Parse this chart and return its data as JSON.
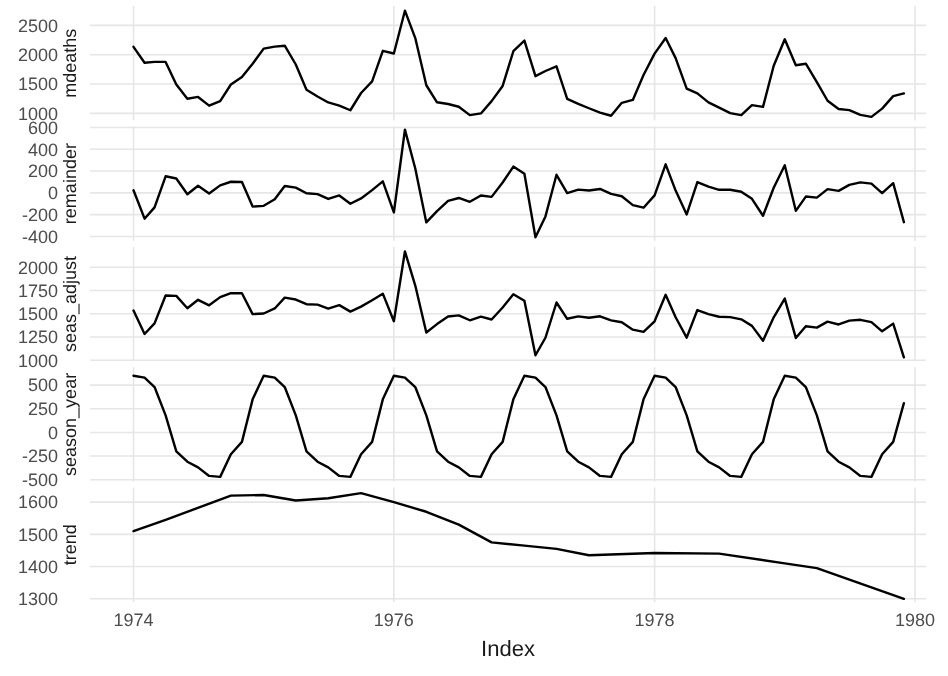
{
  "chart_data": [
    {
      "type": "line",
      "ylabel": "mdeaths",
      "x": [
        "1974-01",
        "1974-02",
        "1974-03",
        "1974-04",
        "1974-05",
        "1974-06",
        "1974-07",
        "1974-08",
        "1974-09",
        "1974-10",
        "1974-11",
        "1974-12",
        "1975-01",
        "1975-02",
        "1975-03",
        "1975-04",
        "1975-05",
        "1975-06",
        "1975-07",
        "1975-08",
        "1975-09",
        "1975-10",
        "1975-11",
        "1975-12",
        "1976-01",
        "1976-02",
        "1976-03",
        "1976-04",
        "1976-05",
        "1976-06",
        "1976-07",
        "1976-08",
        "1976-09",
        "1976-10",
        "1976-11",
        "1976-12",
        "1977-01",
        "1977-02",
        "1977-03",
        "1977-04",
        "1977-05",
        "1977-06",
        "1977-07",
        "1977-08",
        "1977-09",
        "1977-10",
        "1977-11",
        "1977-12",
        "1978-01",
        "1978-02",
        "1978-03",
        "1978-04",
        "1978-05",
        "1978-06",
        "1978-07",
        "1978-08",
        "1978-09",
        "1978-10",
        "1978-11",
        "1978-12",
        "1979-01",
        "1979-02",
        "1979-03",
        "1979-04",
        "1979-05",
        "1979-06",
        "1979-07",
        "1979-08",
        "1979-09",
        "1979-10",
        "1979-11",
        "1979-12"
      ],
      "series": [
        {
          "color": "#000000",
          "values": [
            2134,
            1863,
            1877,
            1877,
            1492,
            1249,
            1280,
            1131,
            1209,
            1492,
            1621,
            1846,
            2103,
            2137,
            2153,
            1833,
            1403,
            1288,
            1186,
            1133,
            1053,
            1347,
            1545,
            2066,
            2020,
            2750,
            2283,
            1479,
            1189,
            1160,
            1113,
            970,
            999,
            1208,
            1467,
            2059,
            2240,
            1634,
            1722,
            1801,
            1246,
            1162,
            1087,
            1013,
            959,
            1179,
            1229,
            1655,
            2019,
            2284,
            1942,
            1423,
            1340,
            1187,
            1098,
            1004,
            970,
            1140,
            1110,
            1812,
            2263,
            1820,
            1846,
            1531,
            1215,
            1075,
            1056,
            975,
            940,
            1081,
            1294,
            1341
          ]
        }
      ],
      "xlim": [
        "1973-09",
        "1980-02"
      ],
      "xticks": [
        "1974",
        "1976",
        "1978",
        "1980"
      ],
      "ylim": [
        880,
        2830
      ],
      "yticks": [
        1000,
        1500,
        2000,
        2500
      ],
      "grid": true,
      "tick_labels": "y"
    },
    {
      "type": "line",
      "ylabel": "remainder",
      "x": [
        "1974-01",
        "1974-02",
        "1974-03",
        "1974-04",
        "1974-05",
        "1974-06",
        "1974-07",
        "1974-08",
        "1974-09",
        "1974-10",
        "1974-11",
        "1974-12",
        "1975-01",
        "1975-02",
        "1975-03",
        "1975-04",
        "1975-05",
        "1975-06",
        "1975-07",
        "1975-08",
        "1975-09",
        "1975-10",
        "1975-11",
        "1975-12",
        "1976-01",
        "1976-02",
        "1976-03",
        "1976-04",
        "1976-05",
        "1976-06",
        "1976-07",
        "1976-08",
        "1976-09",
        "1976-10",
        "1976-11",
        "1976-12",
        "1977-01",
        "1977-02",
        "1977-03",
        "1977-04",
        "1977-05",
        "1977-06",
        "1977-07",
        "1977-08",
        "1977-09",
        "1977-10",
        "1977-11",
        "1977-12",
        "1978-01",
        "1978-02",
        "1978-03",
        "1978-04",
        "1978-05",
        "1978-06",
        "1978-07",
        "1978-08",
        "1978-09",
        "1978-10",
        "1978-11",
        "1978-12",
        "1979-01",
        "1979-02",
        "1979-03",
        "1979-04",
        "1979-05",
        "1979-06",
        "1979-07",
        "1979-08",
        "1979-09",
        "1979-10",
        "1979-11",
        "1979-12"
      ],
      "series": [
        {
          "color": "#000000",
          "values": [
            24,
            -237,
            -133,
            152,
            132,
            -13,
            65,
            -6,
            69,
            102,
            100,
            -126,
            -119,
            -59,
            63,
            48,
            -4,
            -12,
            -56,
            -24,
            -100,
            -51,
            25,
            106,
            -180,
            580,
            223,
            -271,
            -168,
            -73,
            -47,
            -82,
            -24,
            -37,
            95,
            241,
            175,
            -408,
            -216,
            166,
            -2,
            30,
            22,
            36,
            -10,
            -31,
            -112,
            -136,
            -23,
            262,
            21,
            -198,
            99,
            57,
            28,
            29,
            10,
            -55,
            -210,
            47,
            253,
            -165,
            -34,
            -44,
            34,
            18,
            73,
            96,
            85,
            -3,
            89,
            -269
          ]
        }
      ],
      "xlim": [
        "1973-09",
        "1980-02"
      ],
      "xticks": [
        "1974",
        "1976",
        "1978",
        "1980"
      ],
      "ylim": [
        -440,
        610
      ],
      "yticks": [
        -400,
        -200,
        0,
        200,
        400,
        600
      ],
      "grid": true,
      "tick_labels": "y"
    },
    {
      "type": "line",
      "ylabel": "seas_adjust",
      "x": [
        "1974-01",
        "1974-02",
        "1974-03",
        "1974-04",
        "1974-05",
        "1974-06",
        "1974-07",
        "1974-08",
        "1974-09",
        "1974-10",
        "1974-11",
        "1974-12",
        "1975-01",
        "1975-02",
        "1975-03",
        "1975-04",
        "1975-05",
        "1975-06",
        "1975-07",
        "1975-08",
        "1975-09",
        "1975-10",
        "1975-11",
        "1975-12",
        "1976-01",
        "1976-02",
        "1976-03",
        "1976-04",
        "1976-05",
        "1976-06",
        "1976-07",
        "1976-08",
        "1976-09",
        "1976-10",
        "1976-11",
        "1976-12",
        "1977-01",
        "1977-02",
        "1977-03",
        "1977-04",
        "1977-05",
        "1977-06",
        "1977-07",
        "1977-08",
        "1977-09",
        "1977-10",
        "1977-11",
        "1977-12",
        "1978-01",
        "1978-02",
        "1978-03",
        "1978-04",
        "1978-05",
        "1978-06",
        "1978-07",
        "1978-08",
        "1978-09",
        "1978-10",
        "1978-11",
        "1978-12",
        "1979-01",
        "1979-02",
        "1979-03",
        "1979-04",
        "1979-05",
        "1979-06",
        "1979-07",
        "1979-08",
        "1979-09",
        "1979-10",
        "1979-11",
        "1979-12"
      ],
      "series": [
        {
          "color": "#000000",
          "values": [
            1534,
            1283,
            1397,
            1697,
            1692,
            1559,
            1650,
            1591,
            1679,
            1722,
            1721,
            1496,
            1503,
            1557,
            1673,
            1653,
            1603,
            1598,
            1556,
            1593,
            1523,
            1577,
            1645,
            1716,
            1420,
            2170,
            1803,
            1299,
            1389,
            1470,
            1483,
            1430,
            1469,
            1438,
            1567,
            1709,
            1640,
            1054,
            1242,
            1621,
            1446,
            1472,
            1457,
            1473,
            1429,
            1409,
            1329,
            1305,
            1419,
            1704,
            1462,
            1243,
            1540,
            1497,
            1468,
            1464,
            1440,
            1370,
            1210,
            1462,
            1663,
            1240,
            1366,
            1351,
            1415,
            1385,
            1426,
            1435,
            1410,
            1311,
            1394,
            1031
          ]
        }
      ],
      "xlim": [
        "1973-09",
        "1980-02"
      ],
      "xticks": [
        "1974",
        "1976",
        "1978",
        "1980"
      ],
      "ylim": [
        990,
        2220
      ],
      "yticks": [
        1000,
        1250,
        1500,
        1750,
        2000
      ],
      "grid": true,
      "tick_labels": "y"
    },
    {
      "type": "line",
      "ylabel": "season_year",
      "x": [
        "1974-01",
        "1974-02",
        "1974-03",
        "1974-04",
        "1974-05",
        "1974-06",
        "1974-07",
        "1974-08",
        "1974-09",
        "1974-10",
        "1974-11",
        "1974-12",
        "1975-01",
        "1975-02",
        "1975-03",
        "1975-04",
        "1975-05",
        "1975-06",
        "1975-07",
        "1975-08",
        "1975-09",
        "1975-10",
        "1975-11",
        "1975-12",
        "1976-01",
        "1976-02",
        "1976-03",
        "1976-04",
        "1976-05",
        "1976-06",
        "1976-07",
        "1976-08",
        "1976-09",
        "1976-10",
        "1976-11",
        "1976-12",
        "1977-01",
        "1977-02",
        "1977-03",
        "1977-04",
        "1977-05",
        "1977-06",
        "1977-07",
        "1977-08",
        "1977-09",
        "1977-10",
        "1977-11",
        "1977-12",
        "1978-01",
        "1978-02",
        "1978-03",
        "1978-04",
        "1978-05",
        "1978-06",
        "1978-07",
        "1978-08",
        "1978-09",
        "1978-10",
        "1978-11",
        "1978-12",
        "1979-01",
        "1979-02",
        "1979-03",
        "1979-04",
        "1979-05",
        "1979-06",
        "1979-07",
        "1979-08",
        "1979-09",
        "1979-10",
        "1979-11",
        "1979-12"
      ],
      "series": [
        {
          "color": "#000000",
          "values": [
            600,
            580,
            480,
            180,
            -200,
            -310,
            -370,
            -460,
            -470,
            -230,
            -100,
            350,
            600,
            580,
            480,
            180,
            -200,
            -310,
            -370,
            -460,
            -470,
            -230,
            -100,
            350,
            600,
            580,
            480,
            180,
            -200,
            -310,
            -370,
            -460,
            -470,
            -230,
            -100,
            350,
            600,
            580,
            480,
            180,
            -200,
            -310,
            -370,
            -460,
            -470,
            -230,
            -100,
            350,
            600,
            580,
            480,
            180,
            -200,
            -310,
            -370,
            -460,
            -470,
            -230,
            -100,
            350,
            600,
            580,
            480,
            180,
            -200,
            -310,
            -370,
            -460,
            -470,
            -230,
            -100,
            310
          ]
        }
      ],
      "xlim": [
        "1973-09",
        "1980-02"
      ],
      "xticks": [
        "1974",
        "1976",
        "1978",
        "1980"
      ],
      "ylim": [
        -520,
        690
      ],
      "yticks": [
        -500,
        -250,
        0,
        250,
        500
      ],
      "grid": true,
      "tick_labels": "y"
    },
    {
      "type": "line",
      "ylabel": "trend",
      "xlabel": "Index",
      "x": [
        "1974-01",
        "1974-04",
        "1974-10",
        "1975-01",
        "1975-04",
        "1975-07",
        "1975-10",
        "1976-01",
        "1976-04",
        "1976-07",
        "1976-10",
        "1977-01",
        "1977-04",
        "1977-07",
        "1978-01",
        "1978-07",
        "1979-01",
        "1979-04",
        "1979-12"
      ],
      "series": [
        {
          "color": "#000000",
          "values": [
            1510,
            1545,
            1620,
            1622,
            1605,
            1612,
            1628,
            1600,
            1570,
            1530,
            1475,
            1465,
            1455,
            1435,
            1442,
            1440,
            1410,
            1395,
            1300
          ]
        }
      ],
      "xlim": [
        "1973-09",
        "1980-02"
      ],
      "xticks": [
        "1974",
        "1976",
        "1978",
        "1980"
      ],
      "ylim": [
        1290,
        1645
      ],
      "yticks": [
        1300,
        1400,
        1500,
        1600
      ],
      "grid": true
    }
  ]
}
